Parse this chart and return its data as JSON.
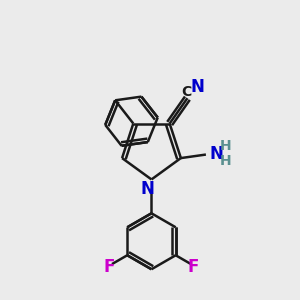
{
  "bg_color": "#ebebeb",
  "bond_color": "#1a1a1a",
  "bond_width": 1.8,
  "n_color": "#0000cc",
  "f_color": "#cc00cc",
  "nh2_h_color": "#5a9090",
  "figsize": [
    3.0,
    3.0
  ],
  "dpi": 100,
  "xlim": [
    0,
    10
  ],
  "ylim": [
    0,
    10
  ]
}
